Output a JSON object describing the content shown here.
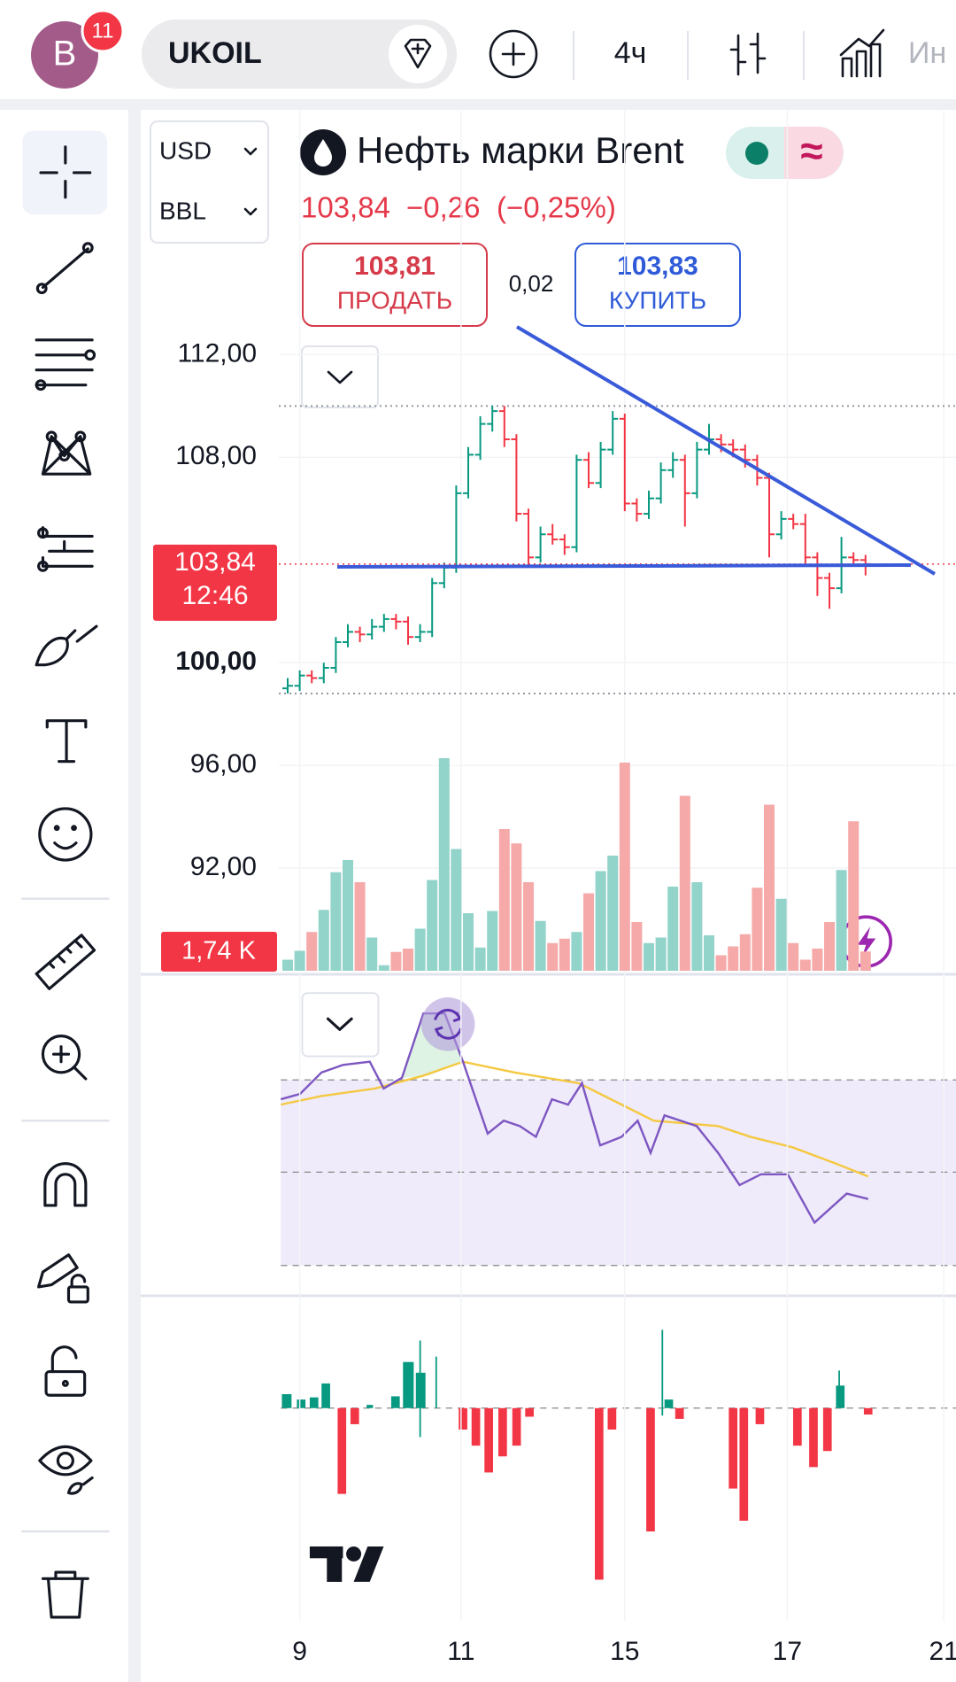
{
  "top_bar": {
    "avatar_letter": "B",
    "badge": "11",
    "symbol": "UKOIL",
    "interval": "4ч",
    "indicators": "Ин"
  },
  "symbol_panel": {
    "currency": "USD",
    "unit": "BBL",
    "title": "Нефть марки Brent",
    "status_icon": "≈",
    "last": "103,84",
    "change": "−0,26",
    "change_pct": "(−0,25%)",
    "sell_price": "103,81",
    "sell_label": "ПРОДАТЬ",
    "spread": "0,02",
    "buy_price": "103,83",
    "buy_label": "КУПИТЬ"
  },
  "chart_data": {
    "type": "ohlc",
    "ylim": [
      88,
      121.5
    ],
    "yticks": [
      {
        "value": 112,
        "label": "112,00"
      },
      {
        "value": 108,
        "label": "108,00"
      },
      {
        "value": 100,
        "label": "100,00",
        "bold": true
      },
      {
        "value": 96,
        "label": "96,00"
      },
      {
        "value": 92,
        "label": "92,00"
      }
    ],
    "last_price": {
      "value": 103.84,
      "label": "103,84"
    },
    "countdown": "12:46",
    "up_color": "#089981",
    "down_color": "#f23645",
    "candles": [
      [
        99.0,
        99.4,
        98.8,
        99.1
      ],
      [
        99.1,
        99.7,
        98.9,
        99.5
      ],
      [
        99.5,
        99.7,
        99.2,
        99.4
      ],
      [
        99.4,
        100.0,
        99.2,
        99.8
      ],
      [
        99.8,
        101.0,
        99.6,
        100.8
      ],
      [
        100.8,
        101.5,
        100.6,
        101.2
      ],
      [
        101.2,
        101.4,
        100.8,
        101.1
      ],
      [
        101.1,
        101.7,
        100.9,
        101.4
      ],
      [
        101.4,
        101.9,
        101.2,
        101.7
      ],
      [
        101.7,
        101.9,
        101.3,
        101.6
      ],
      [
        101.6,
        101.8,
        100.7,
        101.0
      ],
      [
        101.0,
        101.5,
        100.8,
        101.2
      ],
      [
        101.2,
        103.3,
        101.0,
        103.1
      ],
      [
        103.1,
        103.9,
        102.9,
        103.7
      ],
      [
        103.7,
        106.9,
        103.5,
        106.6
      ],
      [
        106.6,
        108.4,
        106.4,
        108.1
      ],
      [
        108.1,
        109.6,
        107.9,
        109.3
      ],
      [
        109.3,
        110.0,
        109.0,
        109.8
      ],
      [
        109.8,
        110.0,
        108.4,
        108.7
      ],
      [
        108.7,
        108.9,
        105.5,
        105.8
      ],
      [
        105.8,
        106.0,
        103.8,
        104.1
      ],
      [
        104.1,
        105.3,
        103.9,
        105.0
      ],
      [
        105.0,
        105.4,
        104.6,
        104.8
      ],
      [
        104.8,
        105.0,
        104.2,
        104.5
      ],
      [
        104.5,
        108.1,
        104.3,
        107.9
      ],
      [
        107.9,
        108.2,
        106.8,
        107.0
      ],
      [
        107.0,
        108.6,
        106.8,
        108.3
      ],
      [
        108.3,
        109.8,
        108.1,
        109.5
      ],
      [
        109.5,
        109.7,
        105.9,
        106.2
      ],
      [
        106.2,
        106.4,
        105.5,
        105.8
      ],
      [
        105.8,
        106.7,
        105.6,
        106.4
      ],
      [
        106.4,
        107.8,
        106.2,
        107.5
      ],
      [
        107.5,
        108.2,
        107.2,
        107.9
      ],
      [
        107.9,
        108.1,
        105.3,
        106.6
      ],
      [
        106.6,
        108.6,
        106.4,
        108.3
      ],
      [
        108.3,
        109.3,
        108.1,
        108.7
      ],
      [
        108.7,
        108.9,
        108.2,
        108.5
      ],
      [
        108.5,
        108.7,
        108.0,
        108.3
      ],
      [
        108.3,
        108.5,
        107.6,
        107.9
      ],
      [
        107.9,
        108.1,
        106.9,
        107.2
      ],
      [
        107.2,
        107.4,
        104.1,
        105.0
      ],
      [
        105.0,
        105.9,
        104.8,
        105.6
      ],
      [
        105.6,
        105.8,
        105.2,
        105.4
      ],
      [
        105.4,
        105.8,
        103.8,
        104.1
      ],
      [
        104.1,
        104.3,
        102.6,
        103.3
      ],
      [
        103.3,
        103.5,
        102.1,
        102.9
      ],
      [
        102.9,
        104.9,
        102.7,
        104.1
      ],
      [
        104.1,
        104.3,
        103.8,
        104.0
      ],
      [
        104.0,
        104.2,
        103.4,
        103.84
      ]
    ],
    "volume": {
      "values": [
        1.0,
        1.8,
        3.5,
        5.5,
        8.9,
        10.0,
        8.0,
        3.0,
        0.5,
        1.7,
        2.0,
        3.8,
        8.2,
        19.2,
        11.0,
        5.2,
        2.1,
        5.4,
        12.8,
        11.5,
        8.0,
        4.5,
        2.5,
        2.9,
        3.5,
        7.0,
        9.0,
        10.4,
        18.8,
        4.4,
        2.5,
        3.0,
        7.6,
        15.8,
        8.0,
        3.2,
        1.4,
        2.2,
        3.3,
        7.5,
        15.0,
        6.5,
        2.5,
        1.0,
        2.0,
        4.4,
        9.1,
        13.5,
        1.74
      ],
      "last_label": "1,74 K",
      "up_color": "#92d3ca",
      "down_color": "#f5a9a9"
    },
    "xticks": [
      {
        "value": 1,
        "label": "9"
      },
      {
        "value": 14.4,
        "label": "11"
      },
      {
        "value": 28,
        "label": "15"
      },
      {
        "value": 41.5,
        "label": "17"
      },
      {
        "value": 54.5,
        "label": "21"
      }
    ]
  }
}
